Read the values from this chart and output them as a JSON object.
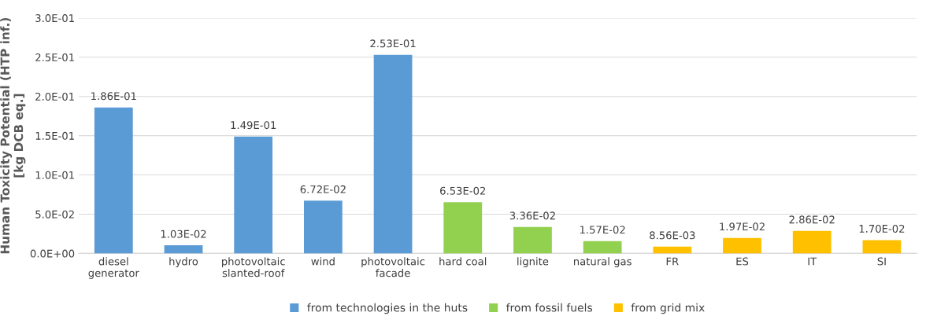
{
  "chart_data": {
    "type": "bar",
    "ylabel": "Human Toxicity Potential (HTP inf.)\n[kg DCB eq.]",
    "categories": [
      "diesel\ngenerator",
      "hydro",
      "photovoltaic\nslanted-roof",
      "wind",
      "photovoltaic\nfacade",
      "hard coal",
      "lignite",
      "natural gas",
      "FR",
      "ES",
      "IT",
      "SI"
    ],
    "series": [
      {
        "name": "from technologies in the huts",
        "color": "#5b9bd5",
        "values": [
          0.186,
          0.0103,
          0.149,
          0.0672,
          0.253,
          null,
          null,
          null,
          null,
          null,
          null,
          null
        ],
        "value_labels": [
          "1.86E-01",
          "1.03E-02",
          "1.49E-01",
          "6.72E-02",
          "2.53E-01",
          null,
          null,
          null,
          null,
          null,
          null,
          null
        ]
      },
      {
        "name": "from fossil fuels",
        "color": "#92d050",
        "values": [
          null,
          null,
          null,
          null,
          null,
          0.0653,
          0.0336,
          0.0157,
          null,
          null,
          null,
          null
        ],
        "value_labels": [
          null,
          null,
          null,
          null,
          null,
          "6.53E-02",
          "3.36E-02",
          "1.57E-02",
          null,
          null,
          null,
          null
        ]
      },
      {
        "name": "from grid mix",
        "color": "#ffc000",
        "values": [
          null,
          null,
          null,
          null,
          null,
          null,
          null,
          null,
          0.00856,
          0.0197,
          0.0286,
          0.017
        ],
        "value_labels": [
          null,
          null,
          null,
          null,
          null,
          null,
          null,
          null,
          "8.56E-03",
          "1.97E-02",
          "2.86E-02",
          "1.70E-02"
        ]
      }
    ],
    "ylim": [
      0,
      0.3
    ],
    "yticks": [
      {
        "value": 0,
        "label": "0.0E+00"
      },
      {
        "value": 0.05,
        "label": "5.0E-02"
      },
      {
        "value": 0.1,
        "label": "1.0E-01"
      },
      {
        "value": 0.15,
        "label": "1.5E-01"
      },
      {
        "value": 0.2,
        "label": "2.0E-01"
      },
      {
        "value": 0.25,
        "label": "2.5E-01"
      },
      {
        "value": 0.3,
        "label": "3.0E-01"
      }
    ],
    "grid": "y",
    "legend": "bottom"
  }
}
